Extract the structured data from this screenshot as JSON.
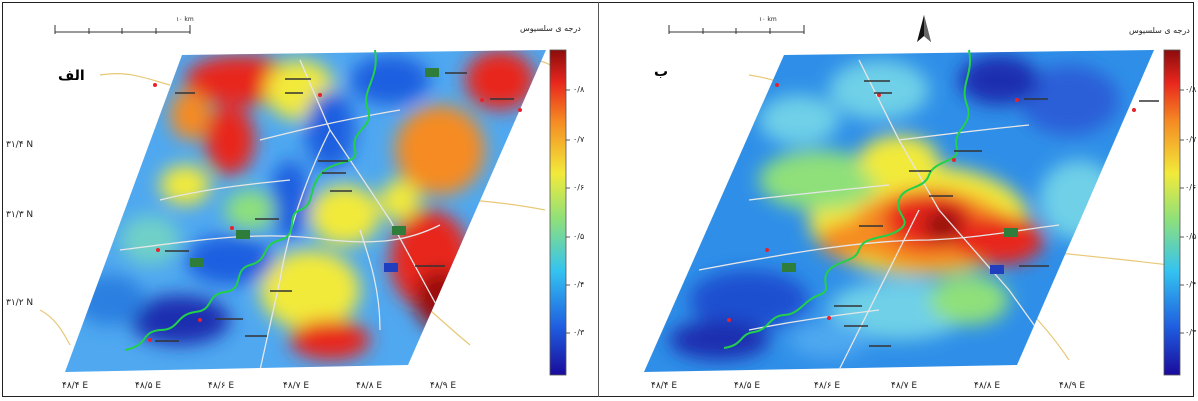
{
  "panels": [
    {
      "id": "a",
      "label": "الف",
      "legend_title": "درجه ی سلسیوس",
      "legend_ticks": [
        "۰/۸",
        "۰/۷",
        "۰/۶",
        "۰/۵",
        "۰/۴",
        "۰/۳"
      ],
      "lat_labels": [
        "۳۱/۴ N",
        "۳۱/۳ N",
        "۳۱/۲ N"
      ],
      "lon_labels": [
        "۴۸/۴ E",
        "۴۸/۵ E",
        "۴۸/۶ E",
        "۴۸/۷ E",
        "۴۸/۸ E",
        "۴۸/۹ E"
      ],
      "scale_label": "۱۰ km"
    },
    {
      "id": "b",
      "label": "ب",
      "legend_title": "درجه ی سلسیوس",
      "legend_ticks": [
        "۰/۸",
        "۰/۷",
        "۰/۶",
        "۰/۵",
        "۰/۴",
        "۰/۳"
      ],
      "lon_labels": [
        "۴۸/۴ E",
        "۴۸/۵ E",
        "۴۸/۶ E",
        "۴۸/۷ E",
        "۴۸/۸ E",
        "۴۸/۹ E"
      ],
      "scale_label": "۱۰ km"
    }
  ],
  "colors": {
    "river": "#22d04a",
    "road": "#e6e6e6",
    "outer_road": "#e8c877",
    "city_marker": "#e8222a",
    "highway_sign": "#2e7d3a",
    "route_sign": "#1f3fbf"
  },
  "north_arrow_icon": "north-arrow-icon"
}
